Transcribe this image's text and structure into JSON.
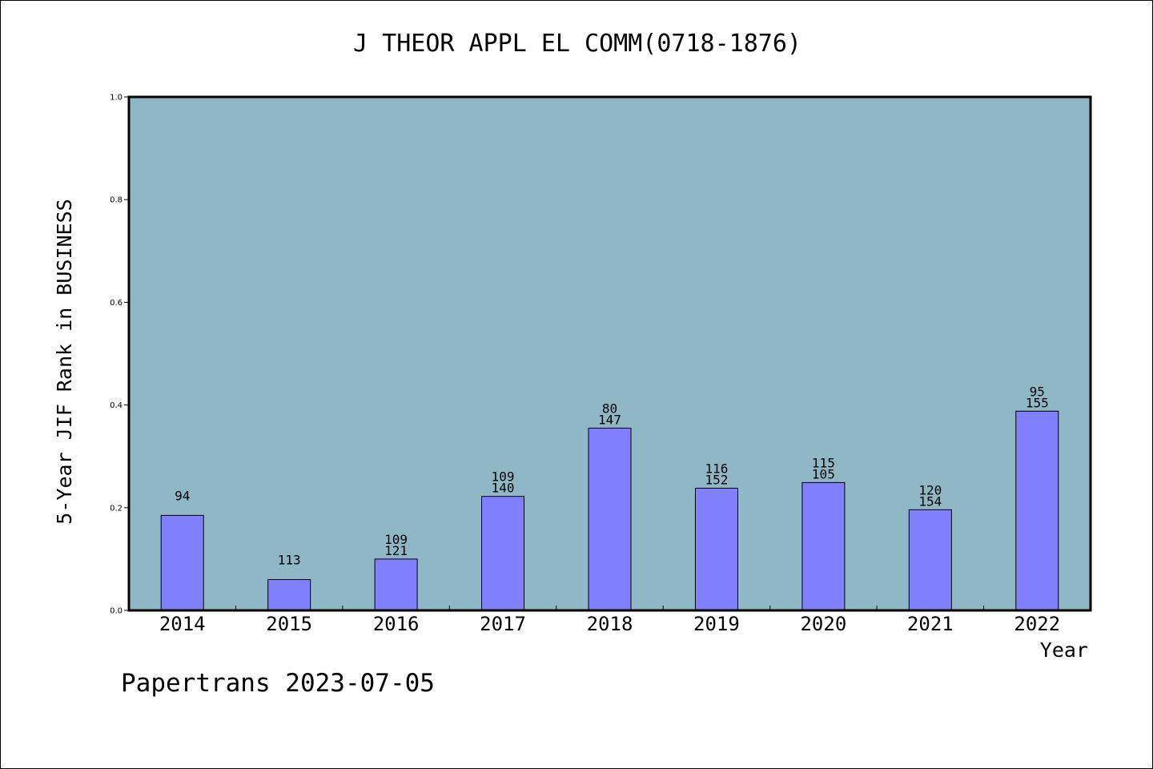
{
  "chart_data": {
    "type": "bar",
    "title": "J THEOR APPL EL COMM(0718-1876)",
    "xlabel": "Year",
    "ylabel": "5-Year JIF Rank in BUSINESS",
    "ylim": [
      0,
      1.0
    ],
    "yticks": [
      "0.0",
      "0.2",
      "0.4",
      "0.6",
      "0.8",
      "1.0"
    ],
    "categories": [
      "2014",
      "2015",
      "2016",
      "2017",
      "2018",
      "2019",
      "2020",
      "2021",
      "2022"
    ],
    "values": [
      0.185,
      0.06,
      0.1,
      0.222,
      0.355,
      0.238,
      0.249,
      0.196,
      0.388
    ],
    "bar_labels": [
      [
        "94"
      ],
      [
        "113"
      ],
      [
        "109",
        "121"
      ],
      [
        "109",
        "140"
      ],
      [
        "80",
        "147"
      ],
      [
        "116",
        "152"
      ],
      [
        "115",
        "105"
      ],
      [
        "120",
        "154"
      ],
      [
        "95",
        "155"
      ]
    ],
    "grid": false,
    "colors": {
      "plot_background": "#8fb7c5",
      "bar_fill": "#8080ff",
      "bar_stroke": "#000000"
    }
  },
  "footer": {
    "note": "Papertrans 2023-07-05"
  }
}
